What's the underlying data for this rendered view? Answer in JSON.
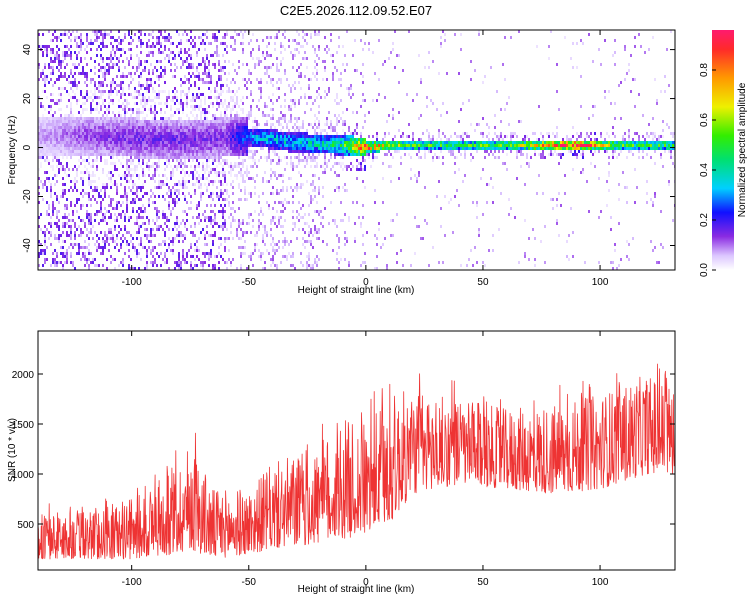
{
  "title": "C2E5.2026.112.09.52.E07",
  "chart_data": [
    {
      "type": "heatmap",
      "xlabel": "Height of straight line (km)",
      "ylabel": "Frequency (Hz)",
      "xlim": [
        -140,
        132
      ],
      "ylim": [
        -50,
        48
      ],
      "xticks": [
        -100,
        -50,
        0,
        50,
        100
      ],
      "yticks": [
        -40,
        -20,
        0,
        20,
        40
      ],
      "colorbar": {
        "label": "Normalized spectral amplitude",
        "range": [
          0,
          0.96
        ],
        "ticks": [
          0.0,
          0.2,
          0.4,
          0.6,
          0.8
        ]
      },
      "ridge": [
        {
          "x": -140,
          "freq": 5,
          "amp": 0.08
        },
        {
          "x": -120,
          "freq": 5,
          "amp": 0.12
        },
        {
          "x": -100,
          "freq": 4,
          "amp": 0.15
        },
        {
          "x": -80,
          "freq": 3,
          "amp": 0.15
        },
        {
          "x": -60,
          "freq": 4,
          "amp": 0.14
        },
        {
          "x": -45,
          "freq": 4,
          "amp": 0.35
        },
        {
          "x": -30,
          "freq": 2,
          "amp": 0.35
        },
        {
          "x": -10,
          "freq": 1,
          "amp": 0.45
        },
        {
          "x": 0,
          "freq": 0,
          "amp": 0.85
        },
        {
          "x": 10,
          "freq": 1,
          "amp": 0.6
        },
        {
          "x": 30,
          "freq": 1,
          "amp": 0.5
        },
        {
          "x": 60,
          "freq": 1,
          "amp": 0.5
        },
        {
          "x": 90,
          "freq": 1,
          "amp": 0.9
        },
        {
          "x": 110,
          "freq": 1,
          "amp": 0.5
        },
        {
          "x": 132,
          "freq": 1,
          "amp": 0.5
        }
      ]
    },
    {
      "type": "line",
      "xlabel": "Height of straight line (km)",
      "ylabel": "SNR (10 * v/v)",
      "xlim": [
        -140,
        132
      ],
      "ylim": [
        40,
        2430
      ],
      "xticks": [
        -100,
        -50,
        0,
        50,
        100
      ],
      "yticks": [
        500,
        1000,
        1500,
        2000
      ],
      "color": "#ee3333",
      "envelope": [
        {
          "x": -140,
          "low": 150,
          "high": 600
        },
        {
          "x": -120,
          "low": 150,
          "high": 650
        },
        {
          "x": -100,
          "low": 150,
          "high": 750
        },
        {
          "x": -80,
          "low": 200,
          "high": 1100
        },
        {
          "x": -75,
          "low": 250,
          "high": 1350
        },
        {
          "x": -65,
          "low": 150,
          "high": 850
        },
        {
          "x": -50,
          "low": 200,
          "high": 850
        },
        {
          "x": -40,
          "low": 250,
          "high": 1100
        },
        {
          "x": -20,
          "low": 300,
          "high": 1300
        },
        {
          "x": -10,
          "low": 350,
          "high": 1550
        },
        {
          "x": 0,
          "low": 400,
          "high": 1500
        },
        {
          "x": 10,
          "low": 500,
          "high": 1800
        },
        {
          "x": 20,
          "low": 800,
          "high": 1850
        },
        {
          "x": 40,
          "low": 900,
          "high": 1750
        },
        {
          "x": 60,
          "low": 850,
          "high": 1650
        },
        {
          "x": 80,
          "low": 800,
          "high": 1700
        },
        {
          "x": 100,
          "low": 850,
          "high": 1800
        },
        {
          "x": 120,
          "low": 1000,
          "high": 2000
        },
        {
          "x": 132,
          "low": 1000,
          "high": 1900
        }
      ]
    }
  ]
}
